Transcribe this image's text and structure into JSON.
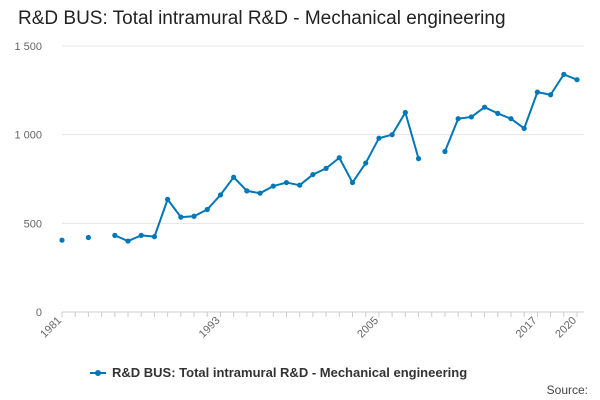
{
  "chart_data": {
    "type": "line",
    "title": "R&D BUS: Total intramural R&D - Mechanical engineering",
    "xlabel": "",
    "ylabel": "",
    "x_range": [
      1981,
      2020
    ],
    "ylim": [
      0,
      1500
    ],
    "y_ticks": [
      0,
      500,
      1000,
      1500
    ],
    "y_tick_labels": [
      "0",
      "500",
      "1 000",
      "1 500"
    ],
    "x_ticks": [
      1981,
      1993,
      2005,
      2017,
      2020
    ],
    "x_tick_labels": [
      "1981",
      "1993",
      "2005",
      "2017",
      "2020"
    ],
    "grid": true,
    "legend_position": "bottom",
    "color": "#0077b6",
    "series": [
      {
        "name": "R&D BUS: Total intramural R&D - Mechanical engineering",
        "x": [
          1981,
          1983,
          1985,
          1986,
          1987,
          1988,
          1989,
          1990,
          1991,
          1992,
          1993,
          1994,
          1995,
          1996,
          1997,
          1998,
          1999,
          2000,
          2001,
          2002,
          2003,
          2004,
          2005,
          2006,
          2007,
          2008,
          2009,
          2010,
          2011,
          2012,
          2013,
          2014,
          2015,
          2016,
          2017,
          2018,
          2019,
          2020
        ],
        "values": [
          405,
          420,
          432,
          400,
          432,
          425,
          635,
          535,
          540,
          578,
          660,
          760,
          683,
          670,
          710,
          730,
          715,
          775,
          810,
          870,
          730,
          840,
          980,
          1000,
          1125,
          865,
          null,
          905,
          1090,
          1100,
          1155,
          1120,
          1090,
          1035,
          1240,
          1225,
          1340,
          1310
        ]
      }
    ]
  },
  "legend": {
    "label": "R&D BUS: Total intramural R&D - Mechanical engineering"
  },
  "footer": {
    "source": "Source:"
  }
}
